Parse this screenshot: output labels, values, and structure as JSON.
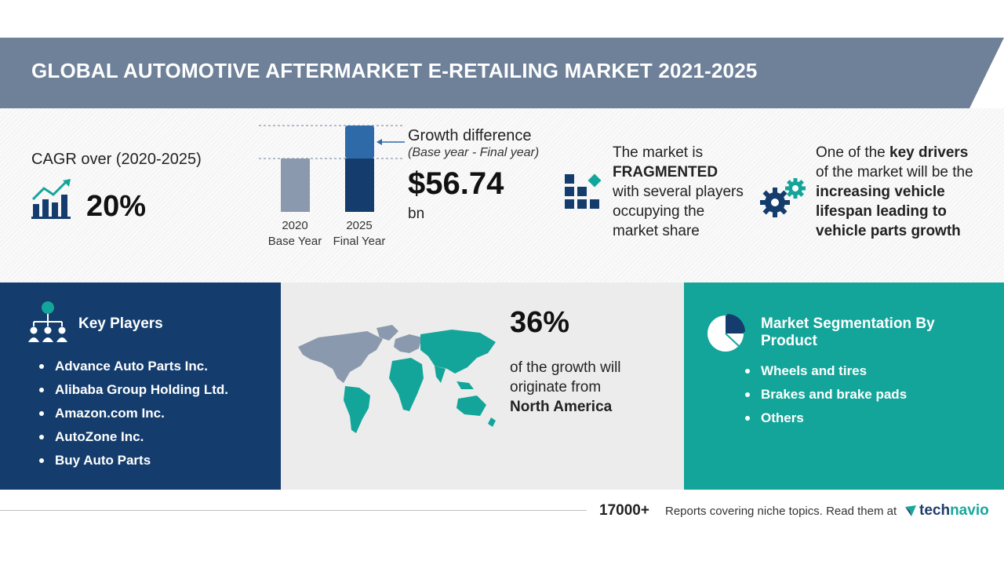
{
  "header": {
    "title": "GLOBAL AUTOMOTIVE AFTERMARKET E-RETAILING MARKET 2021-2025"
  },
  "cagr": {
    "label": "CAGR over (2020-2025)",
    "value": "20%"
  },
  "growth_chart": {
    "bars": [
      {
        "year": "2020",
        "label": "Base Year"
      },
      {
        "year": "2025",
        "label": "Final Year"
      }
    ]
  },
  "growth": {
    "title": "Growth difference",
    "subtitle": "(Base year - Final year)",
    "value": "$56.74",
    "unit": "bn"
  },
  "fragmented": {
    "line1": "The market is",
    "bold": "FRAGMENTED",
    "line2": "with several players occupying the market share"
  },
  "drivers": {
    "pre": "One of the",
    "bold1": "key drivers",
    "mid": "of the market will be the",
    "bold2": "increasing vehicle lifespan leading to vehicle parts growth"
  },
  "key_players": {
    "title": "Key Players",
    "items": [
      "Advance Auto Parts Inc.",
      "Alibaba Group Holding Ltd.",
      "Amazon.com Inc.",
      "AutoZone Inc.",
      "Buy Auto Parts"
    ]
  },
  "region": {
    "percent": "36%",
    "text": "of the growth will originate from",
    "name": "North America"
  },
  "segmentation": {
    "title": "Market Segmentation By Product",
    "items": [
      "Wheels and tires",
      "Brakes and brake pads",
      "Others"
    ]
  },
  "footer": {
    "count": "17000+",
    "text": "Reports covering niche topics. Read them at",
    "logo_tech": "tech",
    "logo_navio": "navio"
  },
  "colors": {
    "header": "#6e8199",
    "navy": "#143d6e",
    "teal": "#14a59a",
    "gray_panel": "#ececec"
  }
}
